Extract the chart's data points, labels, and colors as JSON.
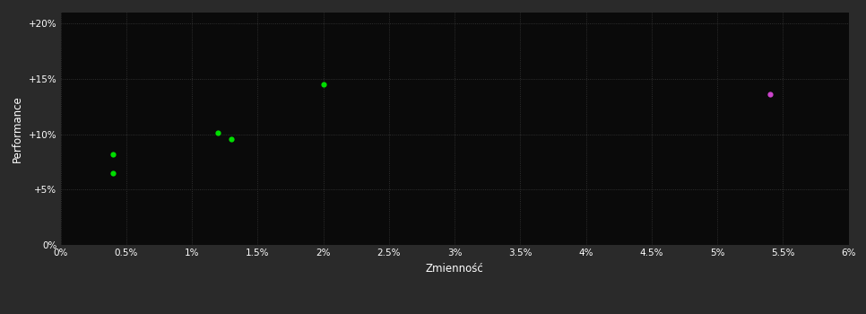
{
  "background_color": "#2a2a2a",
  "plot_bg_color": "#0a0a0a",
  "grid_color": "#3a3a3a",
  "text_color": "#ffffff",
  "xlabel": "Zmienność",
  "ylabel": "Performance",
  "xlim": [
    0.0,
    0.06
  ],
  "ylim": [
    0.0,
    0.21
  ],
  "xticks": [
    0.0,
    0.005,
    0.01,
    0.015,
    0.02,
    0.025,
    0.03,
    0.035,
    0.04,
    0.045,
    0.05,
    0.055,
    0.06
  ],
  "yticks": [
    0.0,
    0.05,
    0.1,
    0.15,
    0.2
  ],
  "xtick_labels": [
    "0%",
    "0.5%",
    "1%",
    "1.5%",
    "2%",
    "2.5%",
    "3%",
    "3.5%",
    "4%",
    "4.5%",
    "5%",
    "5.5%",
    "6%"
  ],
  "ytick_labels": [
    "0%",
    "+5%",
    "+10%",
    "+15%",
    "+20%"
  ],
  "green_points": [
    [
      0.004,
      0.082
    ],
    [
      0.004,
      0.065
    ],
    [
      0.012,
      0.101
    ],
    [
      0.013,
      0.096
    ],
    [
      0.02,
      0.145
    ]
  ],
  "magenta_points": [
    [
      0.054,
      0.136
    ]
  ],
  "green_color": "#00dd00",
  "magenta_color": "#cc44cc",
  "marker_size": 4.5
}
